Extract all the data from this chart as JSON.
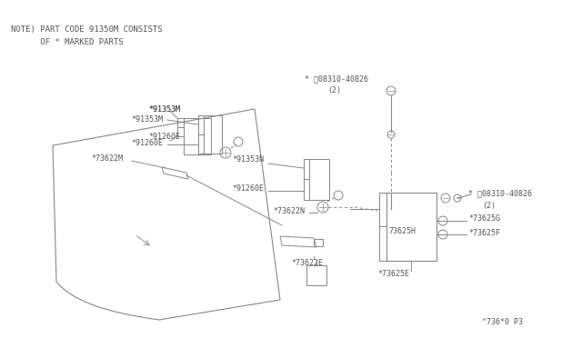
{
  "bg_color": "#ffffff",
  "line_color": "#888888",
  "text_color": "#555555",
  "fig_width": 6.4,
  "fig_height": 3.72,
  "note_line1": "NOTE) PART CODE 91350M CONSISTS",
  "note_line2": "      OF * MARKED PARTS",
  "footer": "^736*0 P3"
}
